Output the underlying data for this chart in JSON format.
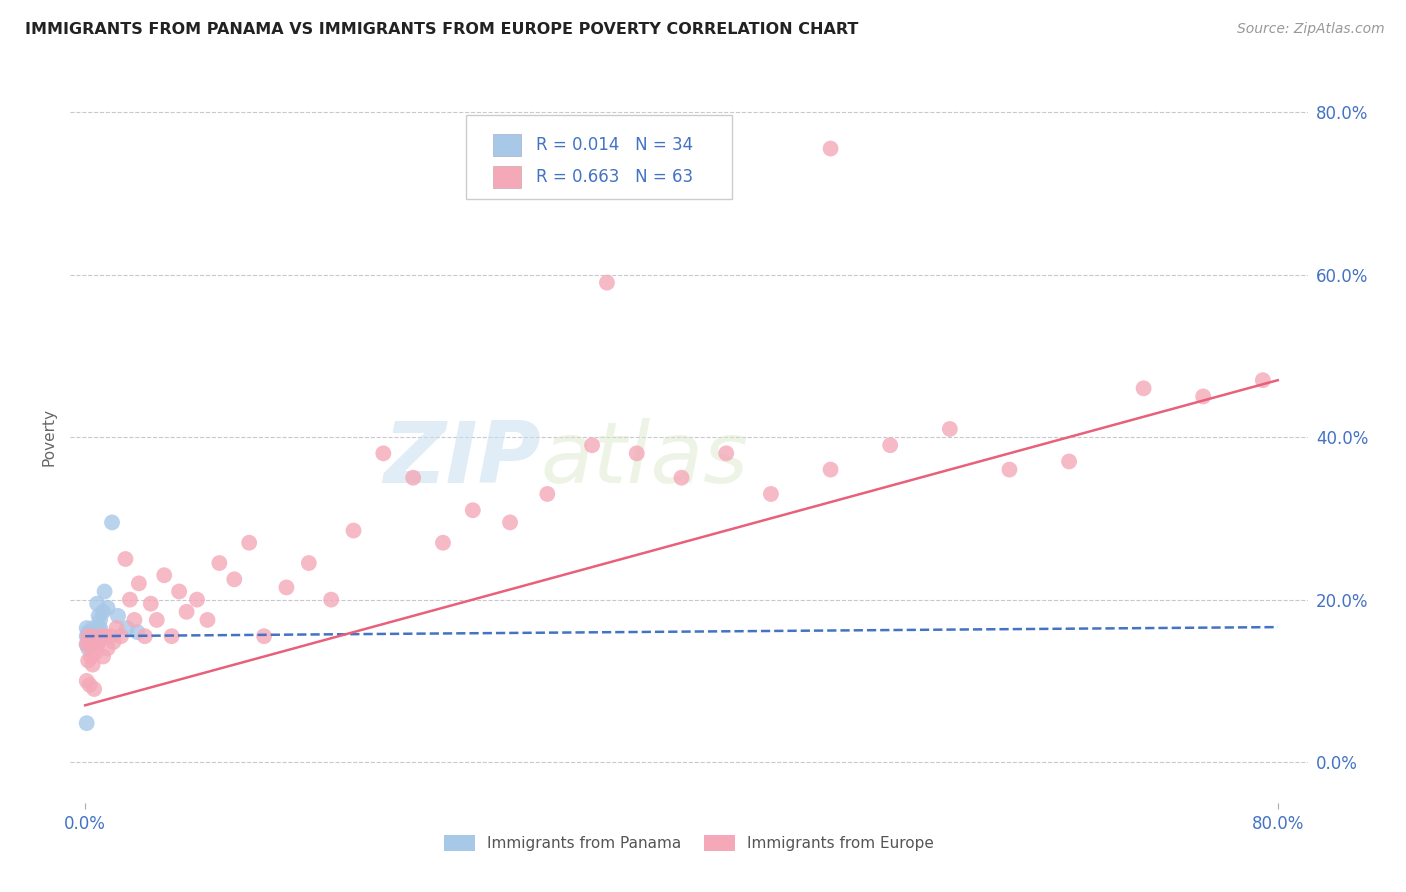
{
  "title": "IMMIGRANTS FROM PANAMA VS IMMIGRANTS FROM EUROPE POVERTY CORRELATION CHART",
  "source": "Source: ZipAtlas.com",
  "ylabel": "Poverty",
  "ytick_values": [
    0.0,
    0.2,
    0.4,
    0.6,
    0.8
  ],
  "xlim": [
    -0.01,
    0.82
  ],
  "ylim": [
    -0.05,
    0.85
  ],
  "legend_R1": "R = 0.014",
  "legend_N1": "N = 34",
  "legend_R2": "R = 0.663",
  "legend_N2": "N = 63",
  "color_panama": "#a8c8e8",
  "color_europe": "#f4a8b8",
  "color_line_panama": "#4472c4",
  "color_line_europe": "#e8607a",
  "color_text_blue": "#4472c4",
  "watermark_zip": "ZIP",
  "watermark_atlas": "atlas",
  "panama_x": [
    0.001,
    0.001,
    0.001,
    0.002,
    0.002,
    0.002,
    0.002,
    0.003,
    0.003,
    0.003,
    0.003,
    0.004,
    0.004,
    0.004,
    0.005,
    0.005,
    0.005,
    0.006,
    0.006,
    0.007,
    0.007,
    0.008,
    0.009,
    0.009,
    0.01,
    0.01,
    0.012,
    0.013,
    0.015,
    0.018,
    0.022,
    0.028,
    0.035,
    0.001
  ],
  "panama_y": [
    0.155,
    0.145,
    0.165,
    0.155,
    0.16,
    0.148,
    0.14,
    0.155,
    0.15,
    0.158,
    0.145,
    0.155,
    0.145,
    0.16,
    0.155,
    0.148,
    0.165,
    0.155,
    0.148,
    0.155,
    0.16,
    0.195,
    0.165,
    0.18,
    0.175,
    0.165,
    0.185,
    0.21,
    0.19,
    0.295,
    0.18,
    0.165,
    0.16,
    0.048
  ],
  "europe_x": [
    0.001,
    0.001,
    0.002,
    0.002,
    0.003,
    0.003,
    0.004,
    0.004,
    0.005,
    0.005,
    0.006,
    0.007,
    0.008,
    0.009,
    0.01,
    0.012,
    0.013,
    0.015,
    0.017,
    0.019,
    0.021,
    0.024,
    0.027,
    0.03,
    0.033,
    0.036,
    0.04,
    0.044,
    0.048,
    0.053,
    0.058,
    0.063,
    0.068,
    0.075,
    0.082,
    0.09,
    0.1,
    0.11,
    0.12,
    0.135,
    0.15,
    0.165,
    0.18,
    0.2,
    0.22,
    0.24,
    0.26,
    0.285,
    0.31,
    0.34,
    0.37,
    0.4,
    0.43,
    0.46,
    0.5,
    0.54,
    0.58,
    0.62,
    0.66,
    0.71,
    0.75,
    0.79,
    0.35
  ],
  "europe_y": [
    0.1,
    0.145,
    0.125,
    0.155,
    0.095,
    0.145,
    0.13,
    0.155,
    0.12,
    0.148,
    0.09,
    0.135,
    0.145,
    0.148,
    0.155,
    0.13,
    0.155,
    0.14,
    0.155,
    0.148,
    0.165,
    0.155,
    0.25,
    0.2,
    0.175,
    0.22,
    0.155,
    0.195,
    0.175,
    0.23,
    0.155,
    0.21,
    0.185,
    0.2,
    0.175,
    0.245,
    0.225,
    0.27,
    0.155,
    0.215,
    0.245,
    0.2,
    0.285,
    0.38,
    0.35,
    0.27,
    0.31,
    0.295,
    0.33,
    0.39,
    0.38,
    0.35,
    0.38,
    0.33,
    0.36,
    0.39,
    0.41,
    0.36,
    0.37,
    0.46,
    0.45,
    0.47,
    0.59
  ]
}
